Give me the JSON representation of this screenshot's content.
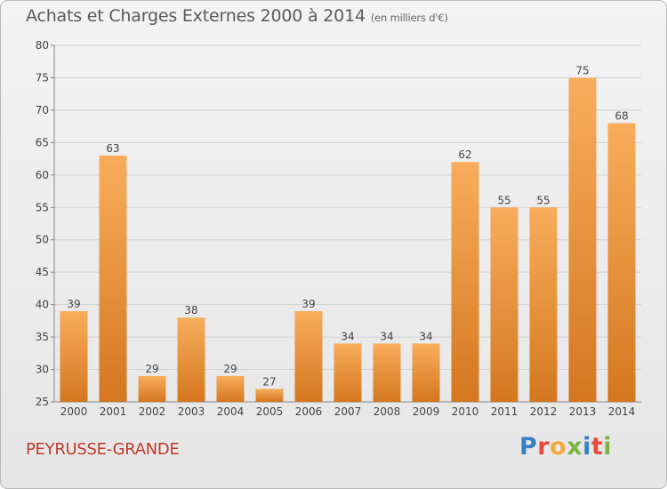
{
  "header": {
    "title": "Achats et Charges Externes 2000 à 2014",
    "subtitle": "(en milliers d'€)"
  },
  "footer": {
    "commune": "PEYRUSSE-GRANDE",
    "logo": "Proxiti"
  },
  "colors": {
    "bar_light": "#f6a550",
    "bar_dark": "#d4771f",
    "commune_text": "#c0392b"
  },
  "chart_data": {
    "type": "bar",
    "title": "Achats et Charges Externes 2000 à 2014",
    "subtitle": "(en milliers d'€)",
    "xlabel": "",
    "ylabel": "",
    "categories": [
      "2000",
      "2001",
      "2002",
      "2003",
      "2004",
      "2005",
      "2006",
      "2007",
      "2008",
      "2009",
      "2010",
      "2011",
      "2012",
      "2013",
      "2014"
    ],
    "values": [
      39,
      63,
      29,
      38,
      29,
      27,
      39,
      34,
      34,
      34,
      62,
      55,
      55,
      75,
      68
    ],
    "ylim": [
      25,
      80
    ],
    "yticks": [
      25,
      30,
      35,
      40,
      45,
      50,
      55,
      60,
      65,
      70,
      75,
      80
    ],
    "grid": true,
    "legend": "none"
  }
}
